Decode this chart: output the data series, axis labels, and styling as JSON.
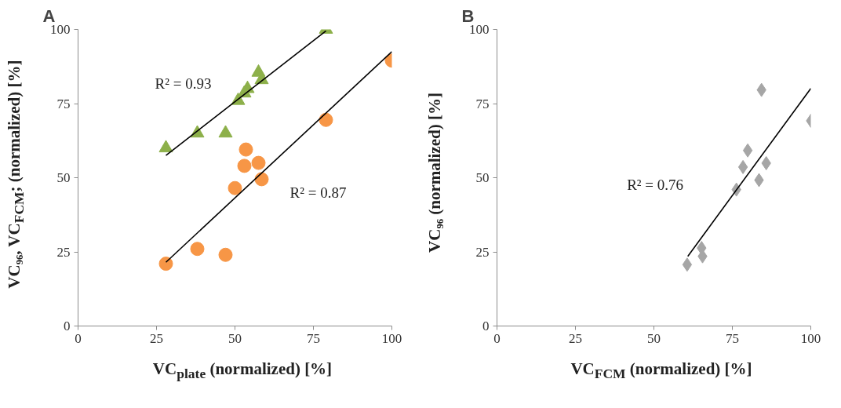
{
  "chart_data": [
    {
      "type": "scatter",
      "title": "A",
      "xlabel": "VC$_{plate}$ (normalized) [%]",
      "ylabel": "VC₉₆, VC$_{FCM}$; (normalized) [%]",
      "xlim": [
        0,
        100
      ],
      "ylim": [
        0,
        100
      ],
      "xticks": [
        0,
        25,
        50,
        75,
        100
      ],
      "yticks": [
        0,
        25,
        50,
        75,
        100
      ],
      "grid": false,
      "series": [
        {
          "color": "#f79646",
          "marker": "circle",
          "x": [
            28,
            38,
            47,
            50,
            53,
            53.5,
            57.5,
            58.5,
            79,
            100
          ],
          "values": [
            21,
            26,
            24,
            46.5,
            54,
            59.5,
            55,
            49.5,
            69.5,
            89.5
          ]
        },
        {
          "color": "#8db04a",
          "marker": "triangle",
          "x": [
            28,
            38,
            47,
            51,
            53,
            54,
            57.5,
            58.5,
            79
          ],
          "values": [
            60,
            65,
            65,
            76,
            78.5,
            80,
            85.5,
            83,
            100
          ]
        },
        {
          "type": "line",
          "color": "#000000",
          "line_style": "solid",
          "marker": "none",
          "x": [
            28,
            79
          ],
          "values": [
            57.5,
            99.5
          ]
        },
        {
          "type": "line",
          "color": "#000000",
          "line_style": "solid",
          "marker": "none",
          "x": [
            28,
            100
          ],
          "values": [
            21.5,
            92.5
          ]
        }
      ],
      "annotations": [
        "R² = 0.93",
        "R² = 0.87"
      ]
    },
    {
      "type": "scatter",
      "title": "B",
      "xlabel": "VC$_{FCM}$ (normalized) [%]",
      "ylabel": "VC₉₆ (normalized) [%]",
      "xlim": [
        0,
        100
      ],
      "ylim": [
        0,
        100
      ],
      "xticks": [
        0,
        25,
        50,
        75,
        100
      ],
      "yticks": [
        0,
        25,
        50,
        75,
        100
      ],
      "grid": false,
      "series": [
        {
          "color": "#a6a6a6",
          "marker": "diamond",
          "x": [
            84.3,
            100,
            79.9,
            78.4,
            85.8,
            83.5,
            76.3,
            65.2,
            65.5,
            60.6
          ],
          "values": [
            79.6,
            69.2,
            59.2,
            53.6,
            54.9,
            49.2,
            46,
            26.3,
            23.5,
            20.7
          ]
        },
        {
          "type": "line",
          "color": "#000000",
          "line_style": "solid",
          "marker": "none",
          "x": [
            60.8,
            100
          ],
          "values": [
            23.5,
            80.1
          ]
        }
      ],
      "annotations": [
        "R² = 0.76"
      ]
    }
  ]
}
